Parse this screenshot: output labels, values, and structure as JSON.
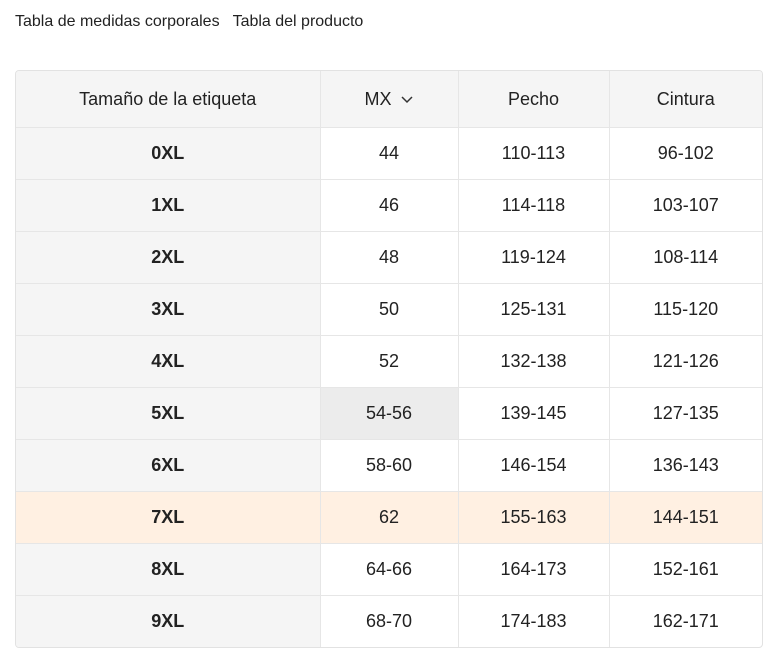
{
  "tabs": [
    "Tabla de medidas corporales",
    "Tabla del producto"
  ],
  "table": {
    "headers": [
      "Tamaño de la etiqueta",
      "MX",
      "Pecho",
      "Cintura"
    ],
    "rows": [
      [
        "0XL",
        "44",
        "110-113",
        "96-102"
      ],
      [
        "1XL",
        "46",
        "114-118",
        "103-107"
      ],
      [
        "2XL",
        "48",
        "119-124",
        "108-114"
      ],
      [
        "3XL",
        "50",
        "125-131",
        "115-120"
      ],
      [
        "4XL",
        "52",
        "132-138",
        "121-126"
      ],
      [
        "5XL",
        "54-56",
        "139-145",
        "127-135"
      ],
      [
        "6XL",
        "58-60",
        "146-154",
        "136-143"
      ],
      [
        "7XL",
        "62",
        "155-163",
        "144-151"
      ],
      [
        "8XL",
        "64-66",
        "164-173",
        "152-161"
      ],
      [
        "9XL",
        "68-70",
        "174-183",
        "162-171"
      ]
    ]
  }
}
